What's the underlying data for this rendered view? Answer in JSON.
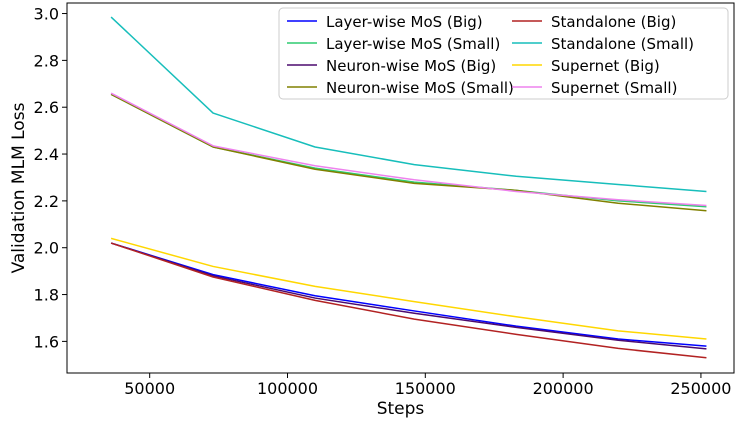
{
  "chart_data": {
    "type": "line",
    "xlabel": "Steps",
    "ylabel": "Validation MLM Loss",
    "xlim": [
      20000,
      262000
    ],
    "ylim": [
      1.465,
      3.045
    ],
    "xticks": [
      50000,
      100000,
      150000,
      200000,
      250000
    ],
    "yticks": [
      1.6,
      1.8,
      2.0,
      2.2,
      2.4,
      2.6,
      2.8,
      3.0
    ],
    "x": [
      36000,
      73000,
      110000,
      146000,
      183000,
      220000,
      252000
    ],
    "legend_position": "top-right",
    "series": [
      {
        "name": "Layer-wise MoS (Big)",
        "color": "#0000ff",
        "values": [
          2.02,
          1.885,
          1.795,
          1.73,
          1.665,
          1.61,
          1.58
        ]
      },
      {
        "name": "Layer-wise MoS (Small)",
        "color": "#2ecc71",
        "values": [
          2.655,
          2.43,
          2.34,
          2.28,
          2.245,
          2.2,
          2.175
        ]
      },
      {
        "name": "Neuron-wise MoS (Big)",
        "color": "#4b0a6e",
        "values": [
          2.02,
          1.88,
          1.785,
          1.72,
          1.66,
          1.605,
          1.568
        ]
      },
      {
        "name": "Neuron-wise MoS (Small)",
        "color": "#808000",
        "values": [
          2.655,
          2.43,
          2.335,
          2.275,
          2.245,
          2.19,
          2.158
        ]
      },
      {
        "name": "Standalone (Big)",
        "color": "#b22222",
        "values": [
          2.02,
          1.875,
          1.775,
          1.695,
          1.63,
          1.57,
          1.53
        ]
      },
      {
        "name": "Standalone (Small)",
        "color": "#17bebb",
        "values": [
          2.985,
          2.575,
          2.43,
          2.355,
          2.305,
          2.27,
          2.24
        ]
      },
      {
        "name": "Supernet (Big)",
        "color": "#ffd700",
        "values": [
          2.04,
          1.92,
          1.835,
          1.77,
          1.705,
          1.645,
          1.61
        ]
      },
      {
        "name": "Supernet (Small)",
        "color": "#ee82ee",
        "values": [
          2.66,
          2.435,
          2.35,
          2.29,
          2.24,
          2.205,
          2.18
        ]
      }
    ]
  }
}
